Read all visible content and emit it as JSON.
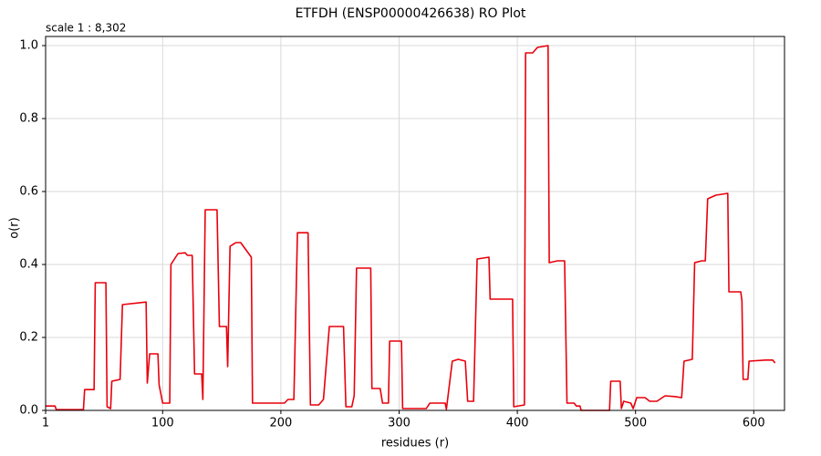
{
  "chart_data": {
    "type": "line",
    "title": "ETFDH (ENSP00000426638) RO Plot",
    "annotation": "scale 1 : 8,302",
    "x_label": "residues (r)",
    "y_label": "o(r)",
    "color": "#e8000b",
    "grid": true,
    "xlim": [
      1,
      626
    ],
    "ylim": [
      0,
      1.025
    ],
    "xticks": [
      1,
      100,
      200,
      300,
      400,
      500,
      600
    ],
    "yticks": [
      {
        "value": 0,
        "label": "0.0"
      },
      0.2,
      0.4,
      0.6,
      0.8,
      {
        "value": 1,
        "label": "1.0"
      }
    ],
    "x": [
      1,
      9,
      10,
      33,
      34,
      42,
      43,
      52,
      53,
      56,
      57,
      64,
      66,
      86,
      87,
      89,
      96,
      97,
      100,
      106,
      107,
      113,
      119,
      121,
      125,
      127,
      133,
      134,
      136,
      146,
      148,
      154,
      155,
      157,
      162,
      166,
      175,
      176,
      203,
      206,
      211,
      214,
      223,
      225,
      232,
      236,
      241,
      253,
      255,
      260,
      262,
      264,
      276,
      277,
      284,
      286,
      291,
      292,
      302,
      303,
      323,
      326,
      339,
      340,
      345,
      350,
      356,
      358,
      363,
      366,
      376,
      377,
      396,
      397,
      406,
      407,
      413,
      417,
      426,
      427,
      434,
      440,
      442,
      448,
      450,
      453,
      454,
      478,
      479,
      487,
      488,
      490,
      496,
      498,
      501,
      508,
      512,
      518,
      525,
      533,
      539,
      541,
      548,
      550,
      556,
      559,
      561,
      568,
      578,
      579,
      589,
      590,
      591,
      595,
      596,
      610,
      616,
      618
    ],
    "values": [
      0.012,
      0.012,
      0.002,
      0.002,
      0.057,
      0.057,
      0.35,
      0.35,
      0.01,
      0.005,
      0.08,
      0.085,
      0.29,
      0.297,
      0.075,
      0.155,
      0.155,
      0.07,
      0.02,
      0.02,
      0.4,
      0.43,
      0.432,
      0.425,
      0.425,
      0.1,
      0.1,
      0.03,
      0.55,
      0.55,
      0.23,
      0.23,
      0.12,
      0.45,
      0.46,
      0.46,
      0.42,
      0.02,
      0.02,
      0.03,
      0.03,
      0.487,
      0.487,
      0.015,
      0.015,
      0.03,
      0.23,
      0.23,
      0.01,
      0.01,
      0.04,
      0.39,
      0.39,
      0.06,
      0.06,
      0.02,
      0.02,
      0.19,
      0.19,
      0.005,
      0.005,
      0.02,
      0.02,
      0.003,
      0.135,
      0.14,
      0.135,
      0.025,
      0.025,
      0.415,
      0.42,
      0.305,
      0.305,
      0.01,
      0.015,
      0.98,
      0.98,
      0.995,
      1.0,
      0.405,
      0.41,
      0.41,
      0.02,
      0.02,
      0.012,
      0.012,
      0,
      0,
      0.08,
      0.08,
      0.005,
      0.025,
      0.02,
      0.005,
      0.035,
      0.035,
      0.025,
      0.025,
      0.04,
      0.038,
      0.035,
      0.135,
      0.14,
      0.405,
      0.41,
      0.41,
      0.58,
      0.59,
      0.595,
      0.325,
      0.325,
      0.3,
      0.085,
      0.085,
      0.135,
      0.138,
      0.138,
      0.13
    ]
  }
}
